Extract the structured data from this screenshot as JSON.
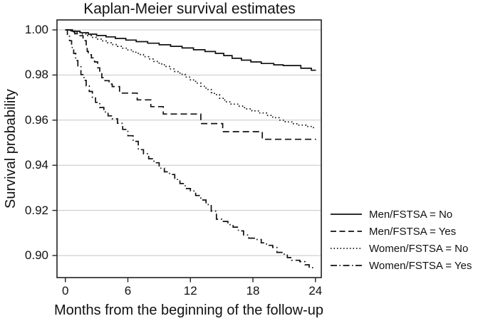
{
  "figure": {
    "background_color": "#ffffff",
    "line_color": "#111111",
    "grid_color": "#c6c6c6",
    "frame_color": "#222222"
  },
  "chart_data": {
    "type": "line",
    "subtype": "kaplan-meier-step",
    "title": "Kaplan-Meier survival estimates",
    "xlabel": "Months from the beginning of the follow-up",
    "ylabel": "Survival probability",
    "xlim": [
      0,
      24
    ],
    "ylim": [
      0.9,
      1.0
    ],
    "x_ticks": [
      {
        "value": 0,
        "label": "0"
      },
      {
        "value": 6,
        "label": "6"
      },
      {
        "value": 12,
        "label": "12"
      },
      {
        "value": 18,
        "label": "18"
      },
      {
        "value": 24,
        "label": "24"
      }
    ],
    "y_ticks": [
      {
        "value": 1.0,
        "label": "1.00"
      },
      {
        "value": 0.98,
        "label": "0.98"
      },
      {
        "value": 0.96,
        "label": "0.96"
      },
      {
        "value": 0.94,
        "label": "0.94"
      },
      {
        "value": 0.92,
        "label": "0.92"
      },
      {
        "value": 0.9,
        "label": "0.90"
      }
    ],
    "grid": "horizontal",
    "legend_position": "right-outside",
    "series": [
      {
        "name": "Men/FSTSA = No",
        "line_style": "solid",
        "points": [
          [
            0,
            1.0
          ],
          [
            0.7,
            0.9994
          ],
          [
            1.4,
            0.9988
          ],
          [
            2.2,
            0.9981
          ],
          [
            3.0,
            0.9975
          ],
          [
            3.9,
            0.9969
          ],
          [
            4.8,
            0.9962
          ],
          [
            5.8,
            0.9955
          ],
          [
            6.8,
            0.9948
          ],
          [
            7.9,
            0.9941
          ],
          [
            9.0,
            0.9934
          ],
          [
            10.1,
            0.9927
          ],
          [
            11.2,
            0.992
          ],
          [
            12.3,
            0.9912
          ],
          [
            13.4,
            0.9904
          ],
          [
            14.4,
            0.9896
          ],
          [
            15.2,
            0.9886
          ],
          [
            16.0,
            0.9874
          ],
          [
            16.9,
            0.9866
          ],
          [
            17.8,
            0.9858
          ],
          [
            18.8,
            0.9851
          ],
          [
            20.0,
            0.9845
          ],
          [
            20.9,
            0.9842
          ],
          [
            22.6,
            0.983
          ],
          [
            23.6,
            0.9821
          ],
          [
            24,
            0.982
          ]
        ]
      },
      {
        "name": "Men/FSTSA = Yes",
        "line_style": "dashed",
        "points": [
          [
            0,
            1.0
          ],
          [
            0.5,
            0.9991
          ],
          [
            0.9,
            0.9983
          ],
          [
            1.3,
            0.9974
          ],
          [
            1.7,
            0.9964
          ],
          [
            1.9,
            0.9952
          ],
          [
            2.0,
            0.993
          ],
          [
            2.1,
            0.9905
          ],
          [
            2.2,
            0.989
          ],
          [
            2.5,
            0.9876
          ],
          [
            2.8,
            0.9858
          ],
          [
            3.1,
            0.9832
          ],
          [
            3.3,
            0.981
          ],
          [
            3.5,
            0.9788
          ],
          [
            3.8,
            0.9775
          ],
          [
            4.2,
            0.976
          ],
          [
            4.5,
            0.9749
          ],
          [
            5.2,
            0.972
          ],
          [
            6.9,
            0.969
          ],
          [
            8.2,
            0.966
          ],
          [
            9.4,
            0.9627
          ],
          [
            13.0,
            0.9585
          ],
          [
            15.1,
            0.9549
          ],
          [
            18.9,
            0.9515
          ],
          [
            24,
            0.9513
          ]
        ]
      },
      {
        "name": "Women/FSTSA = No",
        "line_style": "dotted",
        "points": [
          [
            0,
            1.0
          ],
          [
            0.5,
            0.9995
          ],
          [
            1.0,
            0.9989
          ],
          [
            1.5,
            0.9982
          ],
          [
            2.0,
            0.9975
          ],
          [
            2.5,
            0.9967
          ],
          [
            3.0,
            0.9959
          ],
          [
            3.5,
            0.9951
          ],
          [
            4.0,
            0.9943
          ],
          [
            4.5,
            0.9935
          ],
          [
            5.0,
            0.9927
          ],
          [
            5.5,
            0.9919
          ],
          [
            6.0,
            0.9911
          ],
          [
            6.5,
            0.9901
          ],
          [
            7.0,
            0.9891
          ],
          [
            7.5,
            0.9881
          ],
          [
            8.0,
            0.9871
          ],
          [
            8.5,
            0.986
          ],
          [
            9.0,
            0.9849
          ],
          [
            9.5,
            0.9838
          ],
          [
            10.0,
            0.9827
          ],
          [
            10.5,
            0.9815
          ],
          [
            11.0,
            0.9803
          ],
          [
            11.5,
            0.9791
          ],
          [
            12.0,
            0.9778
          ],
          [
            12.5,
            0.9764
          ],
          [
            13.0,
            0.975
          ],
          [
            13.5,
            0.9736
          ],
          [
            14.0,
            0.9722
          ],
          [
            14.3,
            0.9713
          ],
          [
            14.8,
            0.9697
          ],
          [
            15.3,
            0.9681
          ],
          [
            15.9,
            0.9671
          ],
          [
            16.6,
            0.9662
          ],
          [
            17.2,
            0.965
          ],
          [
            17.9,
            0.9641
          ],
          [
            18.6,
            0.9632
          ],
          [
            19.3,
            0.9621
          ],
          [
            19.9,
            0.9611
          ],
          [
            20.5,
            0.96
          ],
          [
            21.1,
            0.9592
          ],
          [
            21.8,
            0.9584
          ],
          [
            22.4,
            0.9578
          ],
          [
            23.1,
            0.9572
          ],
          [
            23.7,
            0.9567
          ],
          [
            24,
            0.9565
          ]
        ]
      },
      {
        "name": "Women/FSTSA = Yes",
        "line_style": "dash-dot",
        "points": [
          [
            0,
            1.0
          ],
          [
            0.2,
            0.9976
          ],
          [
            0.4,
            0.9952
          ],
          [
            0.6,
            0.9922
          ],
          [
            0.8,
            0.9896
          ],
          [
            1.0,
            0.9864
          ],
          [
            1.2,
            0.984
          ],
          [
            1.5,
            0.9802
          ],
          [
            1.8,
            0.9776
          ],
          [
            2.0,
            0.9752
          ],
          [
            2.3,
            0.9727
          ],
          [
            2.6,
            0.9701
          ],
          [
            2.9,
            0.9679
          ],
          [
            3.3,
            0.9656
          ],
          [
            3.7,
            0.9636
          ],
          [
            4.1,
            0.9619
          ],
          [
            4.5,
            0.9606
          ],
          [
            5.0,
            0.9586
          ],
          [
            5.5,
            0.9559
          ],
          [
            6.0,
            0.9531
          ],
          [
            6.5,
            0.9506
          ],
          [
            7.0,
            0.9469
          ],
          [
            7.5,
            0.9451
          ],
          [
            8.0,
            0.9429
          ],
          [
            8.5,
            0.9411
          ],
          [
            9.0,
            0.9387
          ],
          [
            9.5,
            0.9371
          ],
          [
            10.0,
            0.9359
          ],
          [
            10.5,
            0.9337
          ],
          [
            11.0,
            0.9319
          ],
          [
            11.5,
            0.9297
          ],
          [
            12.0,
            0.9286
          ],
          [
            12.5,
            0.9266
          ],
          [
            13.0,
            0.9246
          ],
          [
            13.5,
            0.9226
          ],
          [
            14.0,
            0.9197
          ],
          [
            14.5,
            0.9161
          ],
          [
            15.0,
            0.9151
          ],
          [
            15.6,
            0.9137
          ],
          [
            16.1,
            0.9126
          ],
          [
            16.6,
            0.9109
          ],
          [
            17.1,
            0.9091
          ],
          [
            17.6,
            0.9077
          ],
          [
            18.3,
            0.9071
          ],
          [
            18.8,
            0.9056
          ],
          [
            19.3,
            0.9045
          ],
          [
            19.9,
            0.9036
          ],
          [
            20.3,
            0.9014
          ],
          [
            20.9,
            0.9006
          ],
          [
            21.3,
            0.8991
          ],
          [
            21.7,
            0.8979
          ],
          [
            22.5,
            0.8973
          ],
          [
            23.0,
            0.8959
          ],
          [
            23.4,
            0.8946
          ],
          [
            23.8,
            0.8941
          ]
        ]
      }
    ]
  }
}
